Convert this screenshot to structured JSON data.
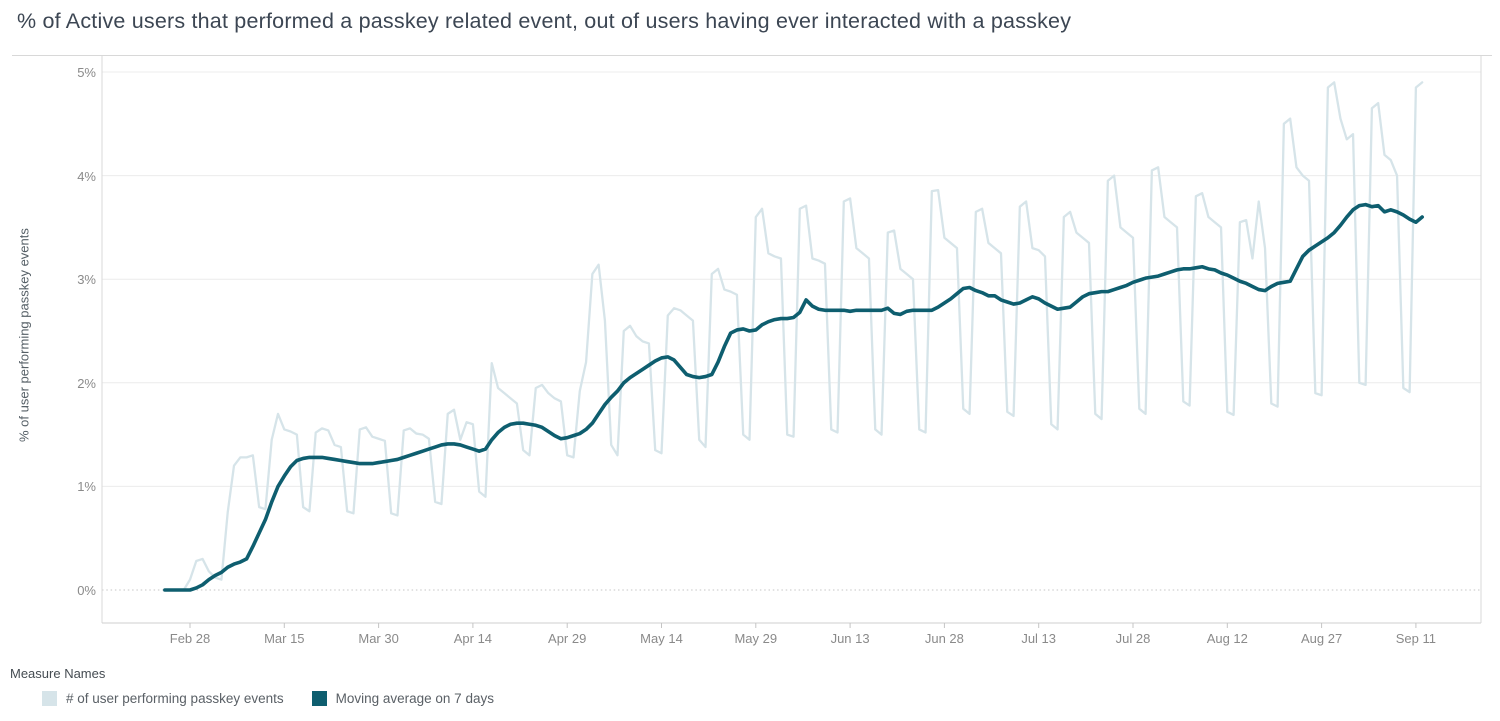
{
  "title": "% of Active users that performed a passkey related event, out of users having ever interacted with a passkey",
  "y_axis": {
    "title": "% of user performing passkey events",
    "ticks": [
      {
        "label": "0%",
        "value": 0
      },
      {
        "label": "1%",
        "value": 1
      },
      {
        "label": "2%",
        "value": 2
      },
      {
        "label": "3%",
        "value": 3
      },
      {
        "label": "4%",
        "value": 4
      },
      {
        "label": "5%",
        "value": 5
      }
    ]
  },
  "x_axis": {
    "ticks": [
      "Feb 28",
      "Mar 15",
      "Mar 30",
      "Apr 14",
      "Apr 29",
      "May 14",
      "May 29",
      "Jun 13",
      "Jun 28",
      "Jul 13",
      "Jul 28",
      "Aug 12",
      "Aug 27",
      "Sep 11"
    ]
  },
  "legend": {
    "title": "Measure Names",
    "items": [
      {
        "label": "# of user performing passkey events",
        "color": "#d6e4e9"
      },
      {
        "label": "Moving average on 7 days",
        "color": "#0e5e6f"
      }
    ]
  },
  "colors": {
    "background": "#ffffff",
    "title_text": "#3c4653",
    "axis_text": "#8a8a8a",
    "gridline": "#ececec",
    "zero_line": "#c6c6c6",
    "border": "#d9d9d9",
    "axis_line": "#cfcfcf",
    "daily_series": "#d6e4e9",
    "moving_average": "#0e5e6f"
  },
  "chart_data": {
    "type": "line",
    "title": "% of Active users that performed a passkey related event, out of users having ever interacted with a passkey",
    "xlabel": "",
    "ylabel": "% of user performing passkey events",
    "ylim": [
      0,
      5
    ],
    "grid": true,
    "zero_line_style": "dotted",
    "legend_position": "bottom-left",
    "x_tick_labels": [
      "Feb 28",
      "Mar 15",
      "Mar 30",
      "Apr 14",
      "Apr 29",
      "May 14",
      "May 29",
      "Jun 13",
      "Jun 28",
      "Jul 13",
      "Jul 28",
      "Aug 12",
      "Aug 27",
      "Sep 11"
    ],
    "x": [
      "Feb 24",
      "Feb 25",
      "Feb 26",
      "Feb 27",
      "Feb 28",
      "Mar 1",
      "Mar 2",
      "Mar 3",
      "Mar 4",
      "Mar 5",
      "Mar 6",
      "Mar 7",
      "Mar 8",
      "Mar 9",
      "Mar 10",
      "Mar 11",
      "Mar 12",
      "Mar 13",
      "Mar 14",
      "Mar 15",
      "Mar 16",
      "Mar 17",
      "Mar 18",
      "Mar 19",
      "Mar 20",
      "Mar 21",
      "Mar 22",
      "Mar 23",
      "Mar 24",
      "Mar 25",
      "Mar 26",
      "Mar 27",
      "Mar 28",
      "Mar 29",
      "Mar 30",
      "Mar 31",
      "Apr 1",
      "Apr 2",
      "Apr 3",
      "Apr 4",
      "Apr 5",
      "Apr 6",
      "Apr 7",
      "Apr 8",
      "Apr 9",
      "Apr 10",
      "Apr 11",
      "Apr 12",
      "Apr 13",
      "Apr 14",
      "Apr 15",
      "Apr 16",
      "Apr 17",
      "Apr 18",
      "Apr 19",
      "Apr 20",
      "Apr 21",
      "Apr 22",
      "Apr 23",
      "Apr 24",
      "Apr 25",
      "Apr 26",
      "Apr 27",
      "Apr 28",
      "Apr 29",
      "Apr 30",
      "May 1",
      "May 2",
      "May 3",
      "May 4",
      "May 5",
      "May 6",
      "May 7",
      "May 8",
      "May 9",
      "May 10",
      "May 11",
      "May 12",
      "May 13",
      "May 14",
      "May 15",
      "May 16",
      "May 17",
      "May 18",
      "May 19",
      "May 20",
      "May 21",
      "May 22",
      "May 23",
      "May 24",
      "May 25",
      "May 26",
      "May 27",
      "May 28",
      "May 29",
      "May 30",
      "May 31",
      "Jun 1",
      "Jun 2",
      "Jun 3",
      "Jun 4",
      "Jun 5",
      "Jun 6",
      "Jun 7",
      "Jun 8",
      "Jun 9",
      "Jun 10",
      "Jun 11",
      "Jun 12",
      "Jun 13",
      "Jun 14",
      "Jun 15",
      "Jun 16",
      "Jun 17",
      "Jun 18",
      "Jun 19",
      "Jun 20",
      "Jun 21",
      "Jun 22",
      "Jun 23",
      "Jun 24",
      "Jun 25",
      "Jun 26",
      "Jun 27",
      "Jun 28",
      "Jun 29",
      "Jun 30",
      "Jul 1",
      "Jul 2",
      "Jul 3",
      "Jul 4",
      "Jul 5",
      "Jul 6",
      "Jul 7",
      "Jul 8",
      "Jul 9",
      "Jul 10",
      "Jul 11",
      "Jul 12",
      "Jul 13",
      "Jul 14",
      "Jul 15",
      "Jul 16",
      "Jul 17",
      "Jul 18",
      "Jul 19",
      "Jul 20",
      "Jul 21",
      "Jul 22",
      "Jul 23",
      "Jul 24",
      "Jul 25",
      "Jul 26",
      "Jul 27",
      "Jul 28",
      "Jul 29",
      "Jul 30",
      "Jul 31",
      "Aug 1",
      "Aug 2",
      "Aug 3",
      "Aug 4",
      "Aug 5",
      "Aug 6",
      "Aug 7",
      "Aug 8",
      "Aug 9",
      "Aug 10",
      "Aug 11",
      "Aug 12",
      "Aug 13",
      "Aug 14",
      "Aug 15",
      "Aug 16",
      "Aug 17",
      "Aug 18",
      "Aug 19",
      "Aug 20",
      "Aug 21",
      "Aug 22",
      "Aug 23",
      "Aug 24",
      "Aug 25",
      "Aug 26",
      "Aug 27",
      "Aug 28",
      "Aug 29",
      "Aug 30",
      "Aug 31",
      "Sep 1",
      "Sep 2",
      "Sep 3",
      "Sep 4",
      "Sep 5",
      "Sep 6",
      "Sep 7",
      "Sep 8",
      "Sep 9",
      "Sep 10",
      "Sep 11",
      "Sep 12"
    ],
    "series": [
      {
        "name": "# of user performing passkey events",
        "color": "#d6e4e9",
        "values": [
          0,
          0,
          0,
          0,
          0.1,
          0.28,
          0.3,
          0.18,
          0.12,
          0.1,
          0.75,
          1.2,
          1.28,
          1.28,
          1.3,
          0.8,
          0.78,
          1.45,
          1.7,
          1.55,
          1.53,
          1.5,
          0.8,
          0.76,
          1.52,
          1.56,
          1.54,
          1.4,
          1.38,
          0.76,
          0.74,
          1.55,
          1.57,
          1.48,
          1.46,
          1.44,
          0.74,
          0.72,
          1.54,
          1.56,
          1.51,
          1.5,
          1.46,
          0.85,
          0.83,
          1.7,
          1.74,
          1.45,
          1.62,
          1.6,
          0.95,
          0.9,
          2.19,
          1.95,
          1.9,
          1.85,
          1.8,
          1.35,
          1.3,
          1.95,
          1.98,
          1.9,
          1.85,
          1.82,
          1.3,
          1.28,
          1.92,
          2.2,
          3.05,
          3.14,
          2.6,
          1.4,
          1.3,
          2.5,
          2.55,
          2.45,
          2.4,
          2.38,
          1.35,
          1.32,
          2.65,
          2.72,
          2.7,
          2.65,
          2.6,
          1.45,
          1.38,
          3.05,
          3.1,
          2.9,
          2.88,
          2.85,
          1.5,
          1.45,
          3.6,
          3.68,
          3.25,
          3.22,
          3.2,
          1.5,
          1.48,
          3.68,
          3.71,
          3.2,
          3.18,
          3.15,
          1.55,
          1.52,
          3.75,
          3.78,
          3.3,
          3.25,
          3.2,
          1.55,
          1.5,
          3.45,
          3.47,
          3.1,
          3.05,
          3.0,
          1.55,
          1.52,
          3.85,
          3.86,
          3.4,
          3.35,
          3.3,
          1.75,
          1.7,
          3.65,
          3.68,
          3.35,
          3.3,
          3.25,
          1.72,
          1.68,
          3.7,
          3.75,
          3.3,
          3.28,
          3.22,
          1.6,
          1.55,
          3.6,
          3.65,
          3.45,
          3.4,
          3.35,
          1.7,
          1.65,
          3.95,
          4.0,
          3.5,
          3.45,
          3.4,
          1.75,
          1.7,
          4.05,
          4.08,
          3.6,
          3.55,
          3.5,
          1.82,
          1.78,
          3.8,
          3.83,
          3.6,
          3.55,
          3.5,
          1.72,
          1.69,
          3.55,
          3.57,
          3.2,
          3.75,
          3.3,
          1.8,
          1.77,
          4.5,
          4.55,
          4.08,
          4.0,
          3.95,
          1.9,
          1.88,
          4.85,
          4.9,
          4.55,
          4.35,
          4.4,
          2.0,
          1.98,
          4.65,
          4.7,
          4.2,
          4.15,
          4.0,
          1.95,
          1.91,
          4.85,
          4.9
        ]
      },
      {
        "name": "Moving average on 7 days",
        "color": "#0e5e6f",
        "values": [
          0,
          0,
          0,
          0,
          0,
          0.02,
          0.05,
          0.1,
          0.14,
          0.17,
          0.22,
          0.25,
          0.27,
          0.3,
          0.42,
          0.55,
          0.68,
          0.85,
          1.0,
          1.1,
          1.19,
          1.25,
          1.27,
          1.28,
          1.28,
          1.28,
          1.27,
          1.26,
          1.25,
          1.24,
          1.23,
          1.22,
          1.22,
          1.22,
          1.23,
          1.24,
          1.25,
          1.26,
          1.28,
          1.3,
          1.32,
          1.34,
          1.36,
          1.38,
          1.4,
          1.41,
          1.41,
          1.4,
          1.38,
          1.36,
          1.34,
          1.36,
          1.45,
          1.52,
          1.57,
          1.6,
          1.61,
          1.61,
          1.6,
          1.59,
          1.57,
          1.53,
          1.49,
          1.46,
          1.47,
          1.49,
          1.51,
          1.55,
          1.61,
          1.7,
          1.79,
          1.86,
          1.92,
          2.0,
          2.05,
          2.09,
          2.13,
          2.17,
          2.21,
          2.24,
          2.25,
          2.22,
          2.15,
          2.08,
          2.06,
          2.05,
          2.06,
          2.08,
          2.2,
          2.35,
          2.48,
          2.51,
          2.52,
          2.5,
          2.51,
          2.56,
          2.59,
          2.61,
          2.62,
          2.62,
          2.63,
          2.68,
          2.8,
          2.74,
          2.71,
          2.7,
          2.7,
          2.7,
          2.7,
          2.69,
          2.7,
          2.7,
          2.7,
          2.7,
          2.7,
          2.72,
          2.67,
          2.66,
          2.69,
          2.7,
          2.7,
          2.7,
          2.7,
          2.73,
          2.77,
          2.81,
          2.86,
          2.91,
          2.92,
          2.89,
          2.87,
          2.84,
          2.84,
          2.8,
          2.78,
          2.76,
          2.77,
          2.8,
          2.83,
          2.81,
          2.77,
          2.74,
          2.71,
          2.72,
          2.73,
          2.78,
          2.83,
          2.86,
          2.87,
          2.88,
          2.88,
          2.9,
          2.92,
          2.94,
          2.97,
          2.99,
          3.01,
          3.02,
          3.03,
          3.05,
          3.07,
          3.09,
          3.1,
          3.1,
          3.11,
          3.12,
          3.1,
          3.09,
          3.06,
          3.04,
          3.01,
          2.98,
          2.96,
          2.93,
          2.9,
          2.89,
          2.93,
          2.96,
          2.97,
          2.98,
          3.1,
          3.22,
          3.28,
          3.32,
          3.36,
          3.4,
          3.45,
          3.52,
          3.6,
          3.67,
          3.71,
          3.72,
          3.7,
          3.71,
          3.65,
          3.67,
          3.65,
          3.62,
          3.58,
          3.55,
          3.6
        ]
      }
    ]
  }
}
